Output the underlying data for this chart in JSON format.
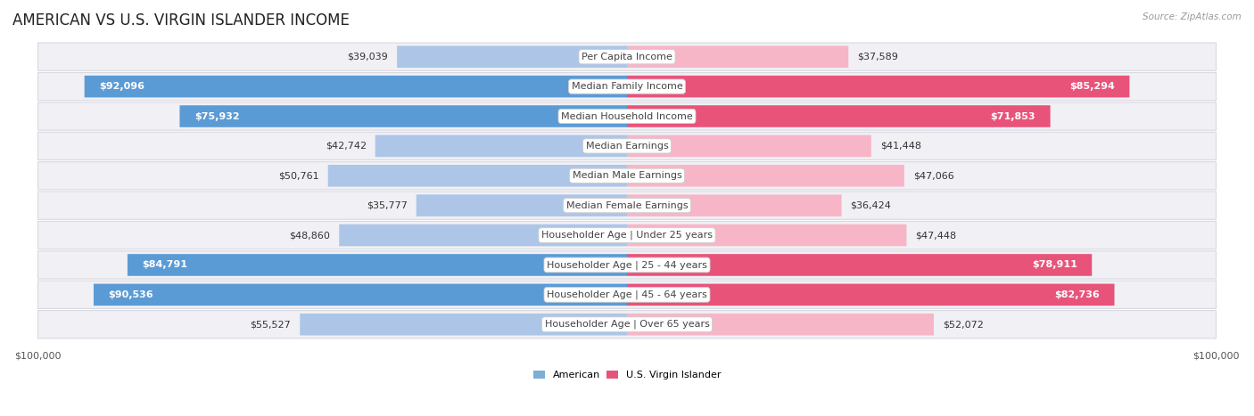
{
  "title": "AMERICAN VS U.S. VIRGIN ISLANDER INCOME",
  "source": "Source: ZipAtlas.com",
  "categories": [
    "Per Capita Income",
    "Median Family Income",
    "Median Household Income",
    "Median Earnings",
    "Median Male Earnings",
    "Median Female Earnings",
    "Householder Age | Under 25 years",
    "Householder Age | 25 - 44 years",
    "Householder Age | 45 - 64 years",
    "Householder Age | Over 65 years"
  ],
  "american_values": [
    39039,
    92096,
    75932,
    42742,
    50761,
    35777,
    48860,
    84791,
    90536,
    55527
  ],
  "virgin_islander_values": [
    37589,
    85294,
    71853,
    41448,
    47066,
    36424,
    47448,
    78911,
    82736,
    52072
  ],
  "american_labels": [
    "$39,039",
    "$92,096",
    "$75,932",
    "$42,742",
    "$50,761",
    "$35,777",
    "$48,860",
    "$84,791",
    "$90,536",
    "$55,527"
  ],
  "virgin_islander_labels": [
    "$37,589",
    "$85,294",
    "$71,853",
    "$41,448",
    "$47,066",
    "$36,424",
    "$47,448",
    "$78,911",
    "$82,736",
    "$52,072"
  ],
  "american_color_light": "#adc6e8",
  "american_color_dark": "#5b9bd5",
  "virgin_islander_color_light": "#f7b6c8",
  "virgin_islander_color_dark": "#e8537a",
  "am_threshold": 60000,
  "vi_threshold": 60000,
  "max_value": 100000,
  "bar_height": 0.72,
  "row_bg_color": "#f0f0f5",
  "row_border_color": "#d8d8e0",
  "background_color": "#ffffff",
  "title_fontsize": 12,
  "label_fontsize": 8,
  "category_fontsize": 8,
  "axis_label_fontsize": 8,
  "legend_american_color": "#7bafd4",
  "legend_vi_color": "#e8537a"
}
